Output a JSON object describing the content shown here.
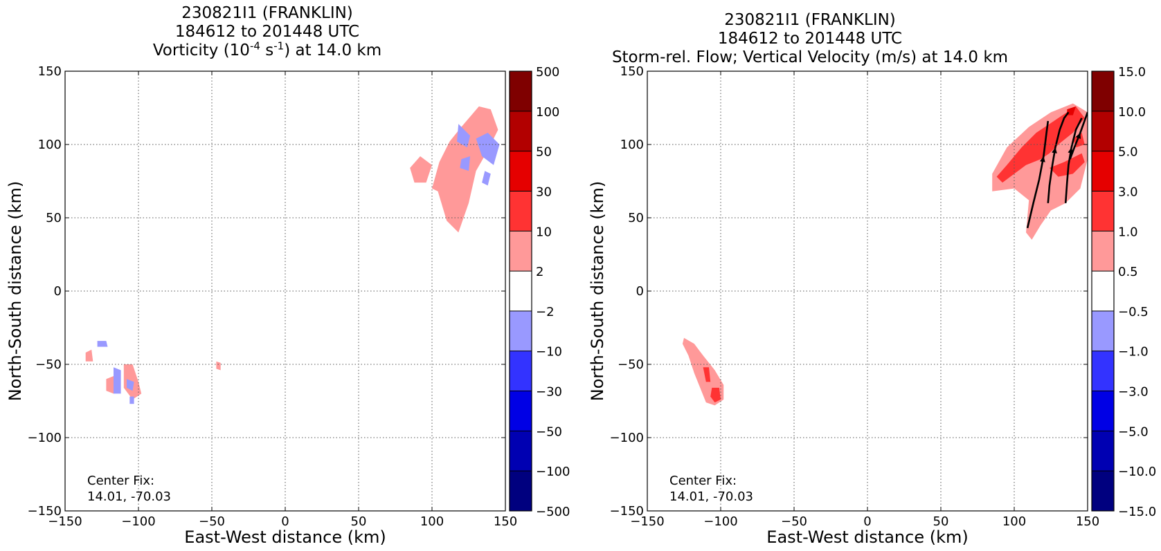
{
  "chart_data": [
    {
      "type": "heatmap",
      "title": "230821I1 (FRANKLIN)",
      "subtitle": "184612 to 201448 UTC",
      "field_title": {
        "pre": "Vorticity (10",
        "exp1": "-4",
        "mid": " s",
        "exp2": "-1",
        "post": ") at 14.0 km"
      },
      "xlabel": "East-West distance (km)",
      "ylabel": "North-South distance (km)",
      "xlim": [
        -150,
        150
      ],
      "ylim": [
        -150,
        150
      ],
      "xticks": [
        "−150",
        "−100",
        "−50",
        "0",
        "50",
        "100",
        "150"
      ],
      "yticks": [
        "150",
        "100",
        "50",
        "0",
        "−50",
        "−100",
        "−150"
      ],
      "grid": true,
      "annotation": [
        "Center Fix:",
        "14.01, -70.03"
      ],
      "colorbar": {
        "labels": [
          "500",
          "100",
          "50",
          "30",
          "10",
          "2",
          "−2",
          "−10",
          "−30",
          "−50",
          "−100",
          "−500"
        ],
        "colors": [
          "#7f0000",
          "#b20000",
          "#e50000",
          "#ff3333",
          "#ff9999",
          "#ffffff",
          "#9999ff",
          "#3333ff",
          "#0000e5",
          "#0000b2",
          "#00007f"
        ]
      },
      "features": [
        {
          "level": "2 to 10",
          "color": "#ff9999",
          "points": [
            [
              100,
              70
            ],
            [
              105,
              88
            ],
            [
              112,
              102
            ],
            [
              120,
              112
            ],
            [
              132,
              126
            ],
            [
              140,
              124
            ],
            [
              145,
              110
            ],
            [
              138,
              96
            ],
            [
              130,
              82
            ],
            [
              125,
              60
            ],
            [
              118,
              40
            ],
            [
              110,
              48
            ],
            [
              104,
              68
            ]
          ]
        },
        {
          "level": "-10 to -2",
          "color": "#9999ff",
          "points": [
            [
              118,
              114
            ],
            [
              126,
              106
            ],
            [
              124,
              98
            ],
            [
              117,
              102
            ]
          ]
        },
        {
          "level": "-10 to -2",
          "color": "#9999ff",
          "points": [
            [
              130,
              104
            ],
            [
              138,
              108
            ],
            [
              146,
              100
            ],
            [
              142,
              86
            ],
            [
              134,
              92
            ]
          ]
        },
        {
          "level": "-10 to -2",
          "color": "#9999ff",
          "points": [
            [
              120,
              90
            ],
            [
              126,
              92
            ],
            [
              125,
              82
            ],
            [
              119,
              84
            ]
          ]
        },
        {
          "level": "-10 to -2",
          "color": "#9999ff",
          "points": [
            [
              136,
              82
            ],
            [
              140,
              80
            ],
            [
              138,
              72
            ],
            [
              134,
              74
            ]
          ]
        },
        {
          "level": "2 to 10",
          "color": "#ff9999",
          "points": [
            [
              85,
              84
            ],
            [
              92,
              92
            ],
            [
              100,
              86
            ],
            [
              96,
              74
            ],
            [
              88,
              74
            ]
          ]
        },
        {
          "level": "2 to 10",
          "color": "#ff9999",
          "points": [
            [
              -136,
              -42
            ],
            [
              -132,
              -40
            ],
            [
              -131,
              -48
            ],
            [
              -136,
              -48
            ]
          ]
        },
        {
          "level": "-10 to -2",
          "color": "#9999ff",
          "points": [
            [
              -128,
              -34
            ],
            [
              -122,
              -34
            ],
            [
              -121,
              -38
            ],
            [
              -128,
              -38
            ]
          ]
        },
        {
          "level": "2 to 10",
          "color": "#ff9999",
          "points": [
            [
              -122,
              -60
            ],
            [
              -117,
              -58
            ],
            [
              -117,
              -70
            ],
            [
              -122,
              -68
            ]
          ]
        },
        {
          "level": "-10 to -2",
          "color": "#9999ff",
          "points": [
            [
              -117,
              -52
            ],
            [
              -112,
              -54
            ],
            [
              -112,
              -70
            ],
            [
              -117,
              -70
            ]
          ]
        },
        {
          "level": "2 to 10",
          "color": "#ff9999",
          "points": [
            [
              -110,
              -50
            ],
            [
              -104,
              -50
            ],
            [
              -100,
              -62
            ],
            [
              -98,
              -70
            ],
            [
              -104,
              -74
            ],
            [
              -110,
              -66
            ]
          ]
        },
        {
          "level": "-10 to -2",
          "color": "#9999ff",
          "points": [
            [
              -108,
              -60
            ],
            [
              -103,
              -62
            ],
            [
              -104,
              -68
            ],
            [
              -108,
              -66
            ]
          ]
        },
        {
          "level": "-10 to -2",
          "color": "#9999ff",
          "points": [
            [
              -106,
              -72
            ],
            [
              -103,
              -72
            ],
            [
              -103,
              -77
            ],
            [
              -106,
              -77
            ]
          ]
        },
        {
          "level": "2 to 10",
          "color": "#ff9999",
          "points": [
            [
              -47,
              -48
            ],
            [
              -44,
              -49
            ],
            [
              -44,
              -54
            ],
            [
              -47,
              -53
            ]
          ]
        }
      ]
    },
    {
      "type": "heatmap",
      "title": "230821I1 (FRANKLIN)",
      "subtitle": "184612 to 201448 UTC",
      "field_title": {
        "pre": "Storm-rel. Flow; Vertical Velocity (m/s) at 14.0 km",
        "exp1": "",
        "mid": "",
        "exp2": "",
        "post": ""
      },
      "xlabel": "East-West distance (km)",
      "ylabel": "North-South distance (km)",
      "xlim": [
        -150,
        150
      ],
      "ylim": [
        -150,
        150
      ],
      "xticks": [
        "−150",
        "−100",
        "−50",
        "0",
        "50",
        "100",
        "150"
      ],
      "yticks": [
        "150",
        "100",
        "50",
        "0",
        "−50",
        "−100",
        "−150"
      ],
      "grid": true,
      "annotation": [
        "Center Fix:",
        "14.01, -70.03"
      ],
      "colorbar": {
        "labels": [
          "15.0",
          "10.0",
          "5.0",
          "3.0",
          "1.0",
          "0.5",
          "−0.5",
          "−1.0",
          "−3.0",
          "−5.0",
          "−10.0",
          "−15.0"
        ],
        "colors": [
          "#7f0000",
          "#b20000",
          "#e50000",
          "#ff3333",
          "#ff9999",
          "#ffffff",
          "#9999ff",
          "#3333ff",
          "#0000e5",
          "#0000b2",
          "#00007f"
        ]
      },
      "features": [
        {
          "level": "0.5 to 1.0",
          "color": "#ff9999",
          "points": [
            [
              85,
              68
            ],
            [
              85,
              80
            ],
            [
              95,
              98
            ],
            [
              110,
              112
            ],
            [
              125,
              122
            ],
            [
              140,
              128
            ],
            [
              150,
              122
            ],
            [
              150,
              90
            ],
            [
              145,
              70
            ],
            [
              135,
              60
            ],
            [
              125,
              55
            ],
            [
              118,
              45
            ],
            [
              112,
              35
            ],
            [
              108,
              40
            ],
            [
              110,
              62
            ],
            [
              100,
              70
            ]
          ]
        },
        {
          "level": "1.0 to 3.0",
          "color": "#ff3333",
          "points": [
            [
              88,
              78
            ],
            [
              95,
              86
            ],
            [
              105,
              98
            ],
            [
              115,
              108
            ],
            [
              130,
              118
            ],
            [
              142,
              126
            ],
            [
              148,
              118
            ],
            [
              140,
              108
            ],
            [
              130,
              100
            ],
            [
              124,
              94
            ],
            [
              118,
              90
            ],
            [
              108,
              86
            ],
            [
              100,
              80
            ],
            [
              92,
              74
            ]
          ]
        },
        {
          "level": "1.0 to 3.0",
          "color": "#ff3333",
          "points": [
            [
              124,
              84
            ],
            [
              134,
              88
            ],
            [
              146,
              94
            ],
            [
              148,
              88
            ],
            [
              140,
              80
            ],
            [
              130,
              78
            ]
          ]
        },
        {
          "level": "1.0 to 3.0",
          "color": "#ff3333",
          "points": [
            [
              140,
              104
            ],
            [
              146,
              108
            ],
            [
              148,
              100
            ],
            [
              142,
              98
            ]
          ]
        },
        {
          "level": "3.0 to 5.0",
          "color": "#e50000",
          "points": [
            [
              136,
              124
            ],
            [
              142,
              126
            ],
            [
              140,
              120
            ],
            [
              136,
              120
            ]
          ]
        },
        {
          "level": "0.5 to 1.0",
          "color": "#ff9999",
          "points": [
            [
              -125,
              -32
            ],
            [
              -118,
              -36
            ],
            [
              -112,
              -44
            ],
            [
              -104,
              -54
            ],
            [
              -98,
              -64
            ],
            [
              -98,
              -74
            ],
            [
              -104,
              -78
            ],
            [
              -110,
              -76
            ],
            [
              -114,
              -66
            ],
            [
              -118,
              -56
            ],
            [
              -122,
              -44
            ],
            [
              -126,
              -36
            ]
          ]
        },
        {
          "level": "1.0 to 3.0",
          "color": "#ff3333",
          "points": [
            [
              -112,
              -52
            ],
            [
              -108,
              -52
            ],
            [
              -107,
              -62
            ],
            [
              -110,
              -62
            ]
          ]
        },
        {
          "level": "1.0 to 3.0",
          "color": "#ff3333",
          "points": [
            [
              -106,
              -66
            ],
            [
              -101,
              -66
            ],
            [
              -100,
              -74
            ],
            [
              -104,
              -76
            ],
            [
              -107,
              -72
            ]
          ]
        }
      ],
      "streamlines": [
        [
          [
            109,
            43
          ],
          [
            113,
            60
          ],
          [
            117,
            76
          ],
          [
            120,
            92
          ],
          [
            122,
            108
          ],
          [
            123,
            116
          ]
        ],
        [
          [
            123,
            60
          ],
          [
            124,
            72
          ],
          [
            126,
            86
          ],
          [
            128,
            98
          ],
          [
            131,
            110
          ],
          [
            134,
            118
          ],
          [
            137,
            122
          ]
        ],
        [
          [
            135,
            60
          ],
          [
            136,
            74
          ],
          [
            137,
            86
          ],
          [
            139,
            98
          ],
          [
            142,
            110
          ],
          [
            146,
            118
          ]
        ],
        [
          [
            138,
            90
          ],
          [
            141,
            98
          ],
          [
            145,
            108
          ],
          [
            150,
            122
          ]
        ]
      ]
    }
  ]
}
